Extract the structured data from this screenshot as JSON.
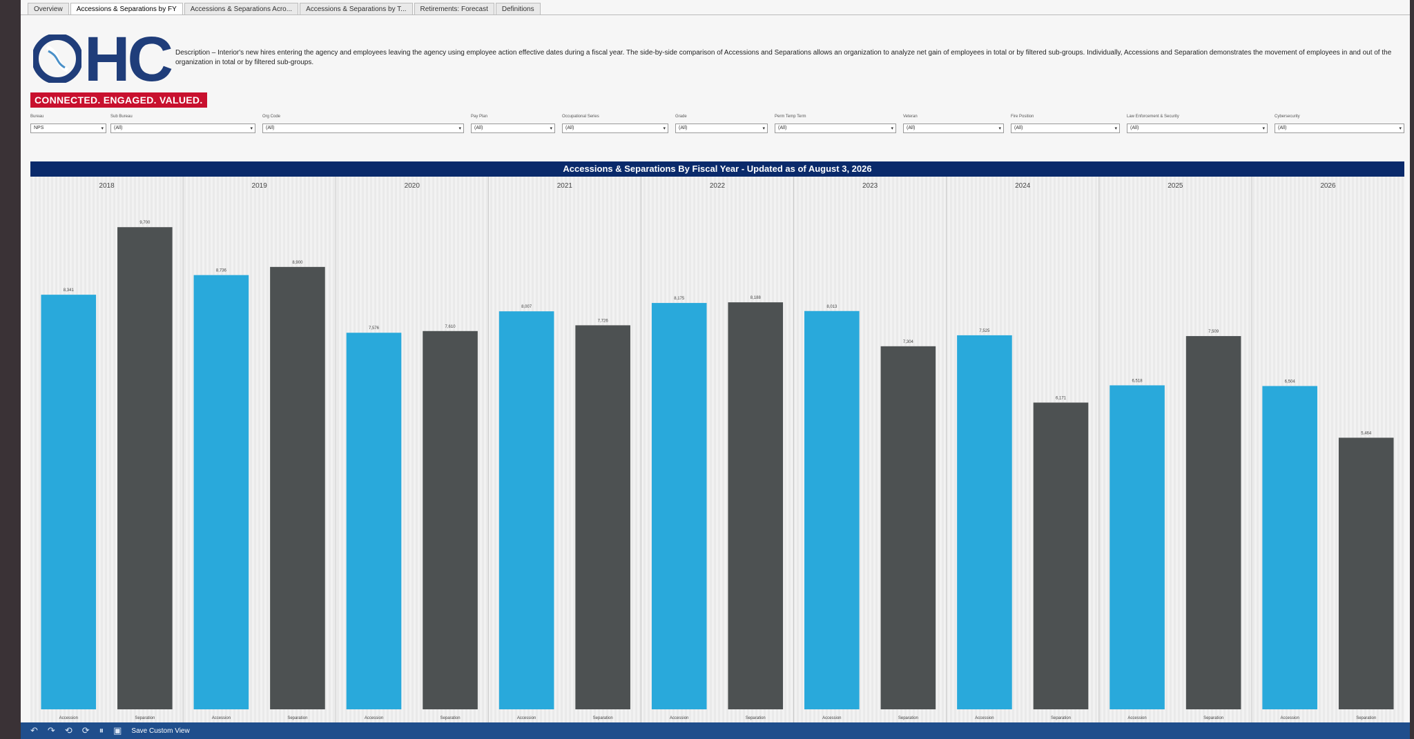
{
  "tabs": [
    {
      "label": "Overview",
      "active": false
    },
    {
      "label": "Accessions & Separations by FY",
      "active": true
    },
    {
      "label": "Accessions & Separations Acro...",
      "active": false
    },
    {
      "label": "Accessions & Separations by T...",
      "active": false
    },
    {
      "label": "Retirements: Forecast",
      "active": false
    },
    {
      "label": "Definitions",
      "active": false
    }
  ],
  "header": {
    "logo_text": "HC",
    "tagline": "CONNECTED. ENGAGED. VALUED.",
    "description": "Description – Interior's new hires entering the agency and employees leaving the agency using employee action effective dates during a fiscal year. The side-by-side comparison of Accessions and Separations allows an organization to analyze net gain of employees in total or by filtered sub-groups. Individually, Accessions and Separation demonstrates the movement of employees in and out of the organization in total or by filtered sub-groups."
  },
  "filters": [
    {
      "label": "Bureau",
      "value": "NPS"
    },
    {
      "label": "Sub Bureau",
      "value": "(All)"
    },
    {
      "label": "Org Code",
      "value": "(All)"
    },
    {
      "label": "Pay Plan",
      "value": "(All)"
    },
    {
      "label": "Occupational Series",
      "value": "(All)"
    },
    {
      "label": "Grade",
      "value": "(All)"
    },
    {
      "label": "Perm Temp Term",
      "value": "(All)"
    },
    {
      "label": "Veteran",
      "value": "(All)"
    },
    {
      "label": "Fire Position",
      "value": "(All)"
    },
    {
      "label": "Law Enforcement & Security",
      "value": "(All)"
    },
    {
      "label": "Cybersecurity",
      "value": "(All)"
    }
  ],
  "chart_data": {
    "type": "bar",
    "title": "Accessions & Separations By Fiscal Year - Updated as of August 3, 2026",
    "categories": [
      "2018",
      "2019",
      "2020",
      "2021",
      "2022",
      "2023",
      "2024",
      "2025",
      "2026"
    ],
    "bar_labels": [
      "Accession",
      "Separation"
    ],
    "series": [
      {
        "name": "Accession",
        "color": "#29a9db",
        "values": [
          8341,
          8736,
          7576,
          8007,
          8175,
          8013,
          7525,
          6518,
          6504
        ]
      },
      {
        "name": "Separation",
        "color": "#4d5152",
        "values": [
          9700,
          8900,
          7610,
          7726,
          8188,
          7304,
          6171,
          7509,
          5464
        ]
      }
    ],
    "value_labels": {
      "Accession": [
        "8,341",
        "8,736",
        "7,576",
        "8,007",
        "8,175",
        "8,013",
        "7,525",
        "6,518",
        "6,504"
      ],
      "Separation": [
        "9,700",
        "8,900",
        "7,610",
        "7,726",
        "8,188",
        "7,304",
        "6,171",
        "7,509",
        "5,464"
      ]
    },
    "ylim": [
      0,
      10300
    ],
    "grid": false
  },
  "toolbar": {
    "save_label": "Save Custom View"
  }
}
